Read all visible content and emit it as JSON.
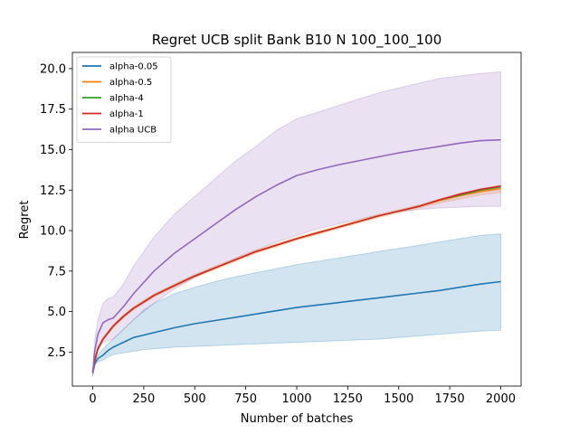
{
  "chart_data": {
    "type": "line",
    "title": "Regret UCB split Bank B10 N 100_100_100",
    "xlabel": "Number of batches",
    "ylabel": "Regret",
    "xlim": [
      -100,
      2100
    ],
    "ylim": [
      0.4,
      21.0
    ],
    "xticks": [
      0,
      250,
      500,
      750,
      1000,
      1250,
      1500,
      1750,
      2000
    ],
    "yticks": [
      2.5,
      5.0,
      7.5,
      10.0,
      12.5,
      15.0,
      17.5,
      20.0
    ],
    "grid": false,
    "legend_position": "upper left",
    "x": [
      0,
      10,
      25,
      50,
      75,
      100,
      150,
      200,
      250,
      300,
      400,
      500,
      600,
      700,
      800,
      900,
      1000,
      1100,
      1200,
      1300,
      1400,
      1500,
      1600,
      1700,
      1800,
      1900,
      2000
    ],
    "series": [
      {
        "name": "alpha-0.05",
        "color": "#1f77b4",
        "values": [
          1.2,
          1.8,
          2.1,
          2.3,
          2.6,
          2.8,
          3.1,
          3.4,
          3.55,
          3.7,
          4.0,
          4.25,
          4.45,
          4.65,
          4.85,
          5.05,
          5.25,
          5.4,
          5.55,
          5.7,
          5.85,
          6.0,
          6.15,
          6.3,
          6.5,
          6.7,
          6.85
        ],
        "lower": [
          1.0,
          1.7,
          1.9,
          2.0,
          2.2,
          2.35,
          2.45,
          2.55,
          2.65,
          2.7,
          2.8,
          2.85,
          2.9,
          2.95,
          3.0,
          3.05,
          3.1,
          3.15,
          3.2,
          3.25,
          3.3,
          3.4,
          3.5,
          3.6,
          3.7,
          3.8,
          3.85
        ],
        "upper": [
          1.4,
          1.9,
          2.3,
          2.7,
          3.0,
          3.3,
          3.9,
          4.5,
          5.1,
          5.5,
          6.1,
          6.5,
          6.85,
          7.15,
          7.4,
          7.65,
          7.9,
          8.1,
          8.3,
          8.5,
          8.7,
          8.9,
          9.1,
          9.3,
          9.5,
          9.7,
          9.8
        ]
      },
      {
        "name": "alpha-0.5",
        "color": "#ff7f0e",
        "values": [
          1.3,
          2.0,
          2.7,
          3.3,
          3.7,
          4.1,
          4.7,
          5.2,
          5.6,
          6.0,
          6.6,
          7.2,
          7.7,
          8.2,
          8.7,
          9.1,
          9.5,
          9.85,
          10.2,
          10.55,
          10.9,
          11.2,
          11.5,
          11.85,
          12.15,
          12.4,
          12.6
        ],
        "lower": [
          1.2,
          1.9,
          2.6,
          3.2,
          3.6,
          4.0,
          4.6,
          5.1,
          5.5,
          5.9,
          6.5,
          7.1,
          7.6,
          8.1,
          8.6,
          9.0,
          9.4,
          9.75,
          10.1,
          10.45,
          10.8,
          11.1,
          11.4,
          11.7,
          11.95,
          12.2,
          12.35
        ],
        "upper": [
          1.4,
          2.1,
          2.8,
          3.4,
          3.8,
          4.2,
          4.8,
          5.3,
          5.7,
          6.1,
          6.7,
          7.3,
          7.8,
          8.3,
          8.8,
          9.2,
          9.6,
          9.95,
          10.3,
          10.65,
          11.0,
          11.3,
          11.6,
          11.95,
          12.3,
          12.55,
          12.8
        ]
      },
      {
        "name": "alpha-4",
        "color": "#2ca02c",
        "values": [
          1.3,
          2.0,
          2.7,
          3.3,
          3.7,
          4.1,
          4.7,
          5.2,
          5.6,
          6.0,
          6.6,
          7.2,
          7.7,
          8.2,
          8.7,
          9.1,
          9.5,
          9.85,
          10.2,
          10.55,
          10.9,
          11.2,
          11.5,
          11.9,
          12.2,
          12.5,
          12.7
        ]
      },
      {
        "name": "alpha-1",
        "color": "#d62728",
        "values": [
          1.3,
          2.0,
          2.7,
          3.3,
          3.7,
          4.1,
          4.7,
          5.2,
          5.6,
          6.0,
          6.6,
          7.2,
          7.7,
          8.2,
          8.7,
          9.1,
          9.5,
          9.85,
          10.2,
          10.55,
          10.9,
          11.2,
          11.5,
          11.9,
          12.25,
          12.55,
          12.75
        ]
      },
      {
        "name": "alpha UCB",
        "color": "#9467bd",
        "values": [
          1.2,
          2.6,
          3.6,
          4.3,
          4.5,
          4.6,
          5.3,
          6.1,
          6.8,
          7.5,
          8.6,
          9.5,
          10.4,
          11.3,
          12.1,
          12.8,
          13.4,
          13.75,
          14.05,
          14.3,
          14.55,
          14.8,
          15.0,
          15.2,
          15.4,
          15.55,
          15.6
        ],
        "lower": [
          1.0,
          1.8,
          2.6,
          3.1,
          3.2,
          3.3,
          3.9,
          4.5,
          5.0,
          5.5,
          6.4,
          7.1,
          7.7,
          8.3,
          8.8,
          9.3,
          9.7,
          10.1,
          10.4,
          10.7,
          10.95,
          11.15,
          11.3,
          11.4,
          11.45,
          11.5,
          11.5
        ],
        "upper": [
          1.4,
          3.3,
          4.5,
          5.5,
          5.8,
          5.9,
          6.7,
          7.8,
          8.7,
          9.6,
          11.0,
          12.1,
          13.2,
          14.3,
          15.2,
          16.2,
          16.9,
          17.3,
          17.7,
          18.1,
          18.5,
          18.8,
          19.1,
          19.4,
          19.55,
          19.7,
          19.8
        ]
      }
    ]
  }
}
